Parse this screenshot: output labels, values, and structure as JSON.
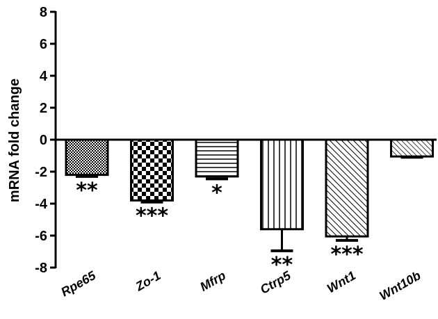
{
  "chart_data": {
    "type": "bar",
    "title": "",
    "xlabel": "",
    "ylabel": "mRNA fold change",
    "ylim": [
      -8,
      8
    ],
    "yticks": [
      8,
      6,
      4,
      2,
      0,
      -2,
      -4,
      -6,
      -8
    ],
    "grid": false,
    "categories": [
      "Rpe65",
      "Zo-1",
      "Mfrp",
      "Ctrp5",
      "Wnt1",
      "Wnt10b"
    ],
    "values": [
      -2.2,
      -3.8,
      -2.3,
      -5.6,
      -6.05,
      -1.05
    ],
    "errors": [
      0.1,
      0.1,
      0.15,
      1.35,
      0.25,
      0.05
    ],
    "significance": [
      "**",
      "***",
      "*",
      "**",
      "***",
      ""
    ],
    "patterns": [
      "dots",
      "checker",
      "horizontal-lines",
      "vertical-lines",
      "diagonal-lines",
      "diagonal-lines-sparse"
    ],
    "bar_color": "#000000"
  }
}
